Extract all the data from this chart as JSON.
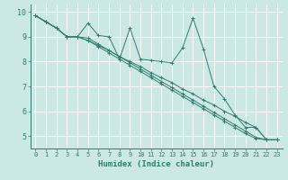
{
  "xlabel": "Humidex (Indice chaleur)",
  "xlim": [
    -0.5,
    23.5
  ],
  "ylim": [
    4.5,
    10.3
  ],
  "yticks": [
    5,
    6,
    7,
    8,
    9,
    10
  ],
  "xticks": [
    0,
    1,
    2,
    3,
    4,
    5,
    6,
    7,
    8,
    9,
    10,
    11,
    12,
    13,
    14,
    15,
    16,
    17,
    18,
    19,
    20,
    21,
    22,
    23
  ],
  "bg_color": "#cce8e5",
  "grid_color": "#ffffff",
  "line_color": "#2e7d6e",
  "series": [
    [
      9.85,
      9.6,
      9.35,
      9.0,
      9.0,
      9.55,
      9.05,
      9.0,
      8.1,
      9.35,
      8.1,
      8.05,
      8.0,
      7.95,
      8.55,
      9.75,
      8.5,
      7.0,
      6.5,
      5.85,
      5.35,
      5.35,
      4.85,
      4.85
    ],
    [
      9.85,
      9.6,
      9.35,
      9.0,
      9.0,
      8.95,
      8.7,
      8.45,
      8.2,
      7.95,
      7.7,
      7.45,
      7.2,
      6.95,
      6.7,
      6.45,
      6.2,
      5.95,
      5.7,
      5.45,
      5.2,
      4.95,
      4.85,
      4.85
    ],
    [
      9.85,
      9.6,
      9.35,
      9.0,
      9.0,
      8.85,
      8.6,
      8.35,
      8.1,
      7.85,
      7.6,
      7.35,
      7.1,
      6.85,
      6.6,
      6.35,
      6.1,
      5.85,
      5.6,
      5.35,
      5.1,
      4.9,
      4.85,
      4.85
    ],
    [
      9.85,
      9.6,
      9.35,
      9.0,
      9.0,
      8.85,
      8.65,
      8.45,
      8.2,
      8.0,
      7.8,
      7.55,
      7.35,
      7.15,
      6.9,
      6.7,
      6.45,
      6.25,
      6.0,
      5.8,
      5.55,
      5.35,
      4.85,
      4.85
    ]
  ]
}
